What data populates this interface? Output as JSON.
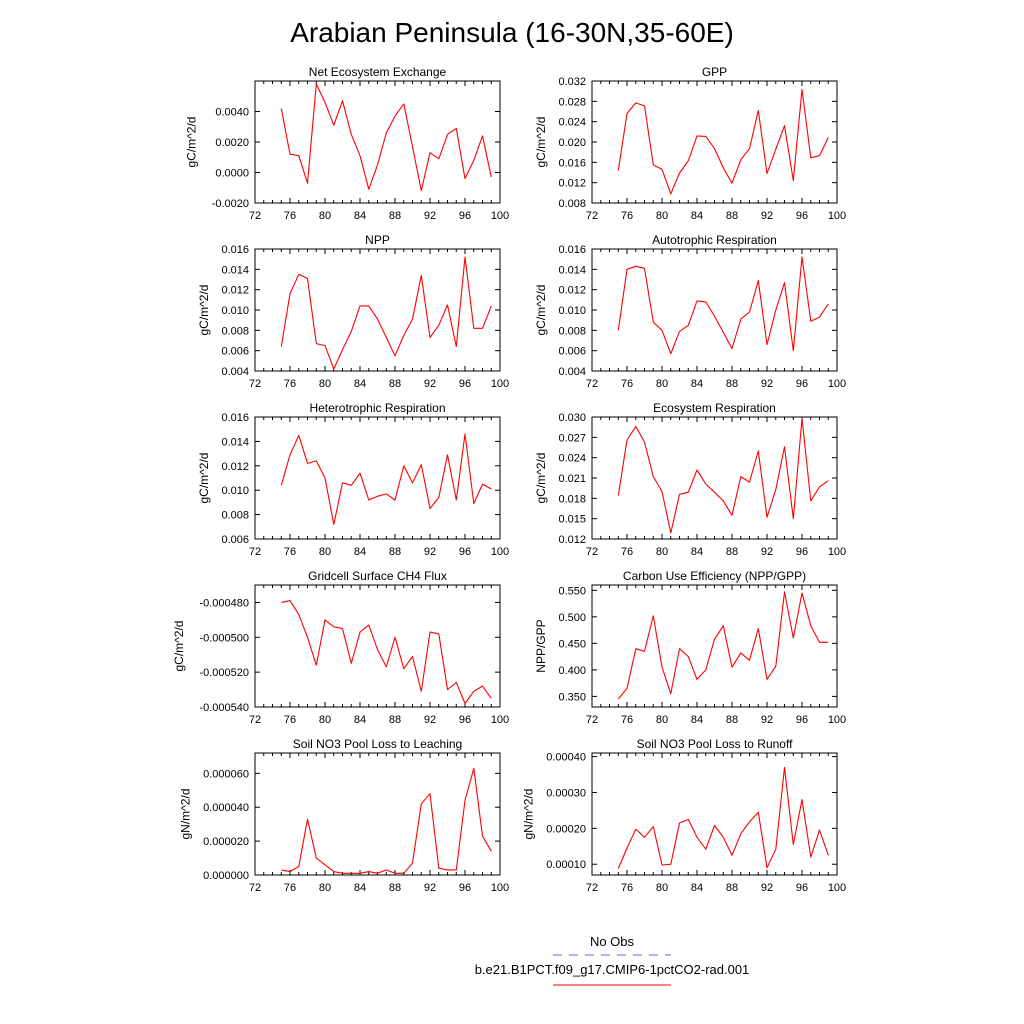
{
  "title": "Arabian Peninsula (16-30N,35-60E)",
  "x": [
    75,
    76,
    77,
    78,
    79,
    80,
    81,
    82,
    83,
    84,
    85,
    86,
    87,
    88,
    89,
    90,
    91,
    92,
    93,
    94,
    95,
    96,
    97,
    98,
    99
  ],
  "xlim": [
    72,
    100
  ],
  "xticks": [
    "72",
    "76",
    "80",
    "84",
    "88",
    "92",
    "96",
    "100"
  ],
  "xtick_values": [
    72,
    76,
    80,
    84,
    88,
    92,
    96,
    100
  ],
  "series_color": "#ff0000",
  "obs_color": "#6666ee",
  "chart_data": [
    {
      "type": "line",
      "title": "Net Ecosystem Exchange",
      "ylabel": "gC/m^2/d",
      "ylim": [
        -0.002,
        0.006
      ],
      "yticks": [
        "-0.0020",
        "0.0000",
        "0.0020",
        "0.0040"
      ],
      "ytick_values": [
        -0.002,
        0.0,
        0.002,
        0.004
      ],
      "values": [
        0.0042,
        0.0012,
        0.0011,
        -0.0007,
        0.0058,
        0.0046,
        0.0031,
        0.0047,
        0.0025,
        0.0011,
        -0.0011,
        0.0005,
        0.0026,
        0.0037,
        0.0045,
        0.0017,
        -0.0012,
        0.0013,
        0.0009,
        0.0025,
        0.0029,
        -0.0004,
        0.0008,
        0.0024,
        -0.0003
      ]
    },
    {
      "type": "line",
      "title": "GPP",
      "ylabel": "gC/m^2/d",
      "ylim": [
        0.008,
        0.032
      ],
      "yticks": [
        "0.008",
        "0.012",
        "0.016",
        "0.020",
        "0.024",
        "0.028",
        "0.032"
      ],
      "ytick_values": [
        0.008,
        0.012,
        0.016,
        0.02,
        0.024,
        0.028,
        0.032
      ],
      "values": [
        0.0144,
        0.0256,
        0.0277,
        0.0271,
        0.0155,
        0.0146,
        0.0098,
        0.0139,
        0.0163,
        0.0212,
        0.0211,
        0.0187,
        0.0149,
        0.0119,
        0.0165,
        0.0187,
        0.0262,
        0.0138,
        0.0186,
        0.0232,
        0.0124,
        0.0303,
        0.0169,
        0.0173,
        0.0209
      ]
    },
    {
      "type": "line",
      "title": "NPP",
      "ylabel": "gC/m^2/d",
      "ylim": [
        0.004,
        0.016
      ],
      "yticks": [
        "0.004",
        "0.006",
        "0.008",
        "0.010",
        "0.012",
        "0.014",
        "0.016"
      ],
      "ytick_values": [
        0.004,
        0.006,
        0.008,
        0.01,
        0.012,
        0.014,
        0.016
      ],
      "values": [
        0.0064,
        0.0116,
        0.0135,
        0.0131,
        0.0067,
        0.0065,
        0.0042,
        0.0061,
        0.0079,
        0.0104,
        0.0104,
        0.0091,
        0.0073,
        0.0055,
        0.0075,
        0.0091,
        0.0134,
        0.0073,
        0.0085,
        0.0105,
        0.0064,
        0.0152,
        0.0082,
        0.0082,
        0.0104
      ]
    },
    {
      "type": "line",
      "title": "Autotrophic Respiration",
      "ylabel": "gC/m^2/d",
      "ylim": [
        0.004,
        0.016
      ],
      "yticks": [
        "0.004",
        "0.006",
        "0.008",
        "0.010",
        "0.012",
        "0.014",
        "0.016"
      ],
      "ytick_values": [
        0.004,
        0.006,
        0.008,
        0.01,
        0.012,
        0.014,
        0.016
      ],
      "values": [
        0.008,
        0.014,
        0.0143,
        0.0141,
        0.0088,
        0.008,
        0.0057,
        0.0079,
        0.0085,
        0.0109,
        0.0108,
        0.0094,
        0.0078,
        0.0062,
        0.0091,
        0.0098,
        0.0129,
        0.0066,
        0.01,
        0.0127,
        0.006,
        0.0152,
        0.0089,
        0.0093,
        0.0106
      ]
    },
    {
      "type": "line",
      "title": "Heterotrophic Respiration",
      "ylabel": "gC/m^2/d",
      "ylim": [
        0.006,
        0.016
      ],
      "yticks": [
        "0.006",
        "0.008",
        "0.010",
        "0.012",
        "0.014",
        "0.016"
      ],
      "ytick_values": [
        0.006,
        0.008,
        0.01,
        0.012,
        0.014,
        0.016
      ],
      "values": [
        0.0104,
        0.0129,
        0.0145,
        0.0122,
        0.0124,
        0.011,
        0.0072,
        0.0106,
        0.0104,
        0.0114,
        0.0092,
        0.0095,
        0.0097,
        0.0092,
        0.012,
        0.0106,
        0.0121,
        0.0085,
        0.0094,
        0.0129,
        0.0092,
        0.0146,
        0.0089,
        0.0105,
        0.0101
      ]
    },
    {
      "type": "line",
      "title": "Ecosystem Respiration",
      "ylabel": "gC/m^2/d",
      "ylim": [
        0.012,
        0.03
      ],
      "yticks": [
        "0.012",
        "0.015",
        "0.018",
        "0.021",
        "0.024",
        "0.027",
        "0.030"
      ],
      "ytick_values": [
        0.012,
        0.015,
        0.018,
        0.021,
        0.024,
        0.027,
        0.03
      ],
      "values": [
        0.0184,
        0.0266,
        0.0286,
        0.0263,
        0.0212,
        0.019,
        0.0129,
        0.0186,
        0.0189,
        0.0222,
        0.0201,
        0.0189,
        0.0176,
        0.0155,
        0.0212,
        0.0204,
        0.025,
        0.0152,
        0.0193,
        0.0256,
        0.015,
        0.0298,
        0.0176,
        0.0197,
        0.0206
      ]
    },
    {
      "type": "line",
      "title": "Gridcell Surface CH4 Flux",
      "ylabel": "gC/m^2/d",
      "ylim": [
        -0.00054,
        -0.00047
      ],
      "yticks": [
        "-0.000540",
        "-0.000520",
        "-0.000500",
        "-0.000480"
      ],
      "ytick_values": [
        -0.00054,
        -0.00052,
        -0.0005,
        -0.00048
      ],
      "values": [
        -0.00048,
        -0.000479,
        -0.000487,
        -0.0005,
        -0.000516,
        -0.00049,
        -0.000494,
        -0.000495,
        -0.000515,
        -0.000497,
        -0.000493,
        -0.000507,
        -0.000517,
        -0.0005,
        -0.000518,
        -0.000511,
        -0.000531,
        -0.000497,
        -0.000498,
        -0.00053,
        -0.000526,
        -0.000538,
        -0.000531,
        -0.000528,
        -0.000535
      ]
    },
    {
      "type": "line",
      "title": "Carbon Use Efficiency (NPP/GPP)",
      "ylabel": "NPP/GPP",
      "ylim": [
        0.33,
        0.56
      ],
      "yticks": [
        "0.350",
        "0.400",
        "0.450",
        "0.500",
        "0.550"
      ],
      "ytick_values": [
        0.35,
        0.4,
        0.45,
        0.5,
        0.55
      ],
      "values": [
        0.345,
        0.365,
        0.44,
        0.435,
        0.502,
        0.405,
        0.355,
        0.44,
        0.425,
        0.382,
        0.4,
        0.458,
        0.483,
        0.405,
        0.432,
        0.418,
        0.478,
        0.382,
        0.407,
        0.547,
        0.46,
        0.545,
        0.483,
        0.452,
        0.452
      ]
    },
    {
      "type": "line",
      "title": "Soil NO3 Pool Loss to Leaching",
      "ylabel": "gN/m^2/d",
      "ylim": [
        0.0,
        7.2e-05
      ],
      "yticks": [
        "0.000000",
        "0.000020",
        "0.000040",
        "0.000060"
      ],
      "ytick_values": [
        0.0,
        2e-05,
        4e-05,
        6e-05
      ],
      "values": [
        3e-06,
        2e-06,
        5e-06,
        3.3e-05,
        1e-05,
        6e-06,
        2e-06,
        1e-06,
        1e-06,
        1e-06,
        2e-06,
        1e-06,
        3e-06,
        1e-06,
        1e-06,
        7e-06,
        4.2e-05,
        4.8e-05,
        4e-06,
        3e-06,
        3e-06,
        4.4e-05,
        6.3e-05,
        2.3e-05,
        1.4e-05
      ]
    },
    {
      "type": "line",
      "title": "Soil NO3 Pool Loss to Runoff",
      "ylabel": "gN/m^2/d",
      "ylim": [
        7e-05,
        0.00041
      ],
      "yticks": [
        "0.00010",
        "0.00020",
        "0.00030",
        "0.00040"
      ],
      "ytick_values": [
        0.0001,
        0.0002,
        0.0003,
        0.0004
      ],
      "values": [
        8.8e-05,
        0.000145,
        0.000198,
        0.000175,
        0.000205,
        9.8e-05,
        0.0001,
        0.000215,
        0.000225,
        0.000175,
        0.000142,
        0.000208,
        0.000175,
        0.000125,
        0.000185,
        0.000218,
        0.000245,
        9e-05,
        0.000142,
        0.00037,
        0.000155,
        0.00028,
        0.00012,
        0.000195,
        0.000125
      ]
    }
  ],
  "legend": {
    "obs_label": "No Obs",
    "case_label": "b.e21.B1PCT.f09_g17.CMIP6-1pctCO2-rad.001"
  }
}
